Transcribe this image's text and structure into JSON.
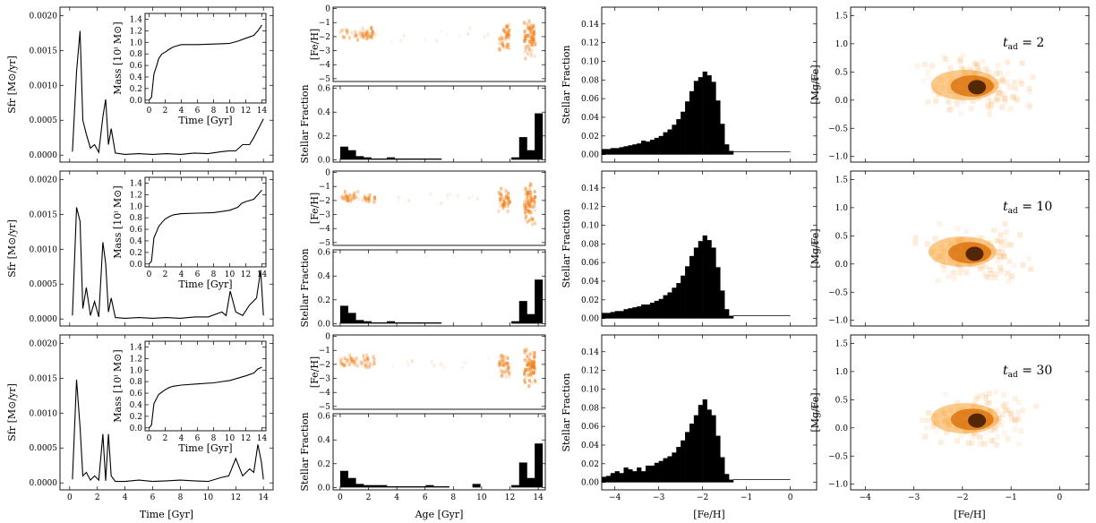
{
  "chart_data": {
    "type": "multi-panel",
    "rows": [
      {
        "t_ad": "2",
        "sfr": {
          "x": [
            0.2,
            0.5,
            0.75,
            0.95,
            1.2,
            1.5,
            1.8,
            2.1,
            2.4,
            2.6,
            2.8,
            3.0,
            3.3,
            4,
            5,
            6,
            7,
            8,
            9,
            10,
            11,
            11.5,
            12,
            12.5,
            13,
            13.3,
            13.7,
            14
          ],
          "y": [
            5e-05,
            0.0012,
            0.00178,
            0.0005,
            0.0003,
            0.0001,
            0.00015,
            4e-05,
            0.00055,
            0.0008,
            0.00015,
            0.00038,
            3e-05,
            1e-05,
            2e-05,
            1e-05,
            2e-05,
            1e-05,
            3e-05,
            2e-05,
            5e-05,
            6e-05,
            6e-05,
            0.00015,
            0.00015,
            0.00025,
            0.0004,
            0.00052
          ]
        },
        "mass": {
          "x": [
            0,
            0.3,
            0.6,
            0.9,
            1.2,
            1.6,
            2,
            2.5,
            3,
            4,
            6,
            8,
            10,
            11,
            12,
            13,
            13.5,
            14
          ],
          "y": [
            0,
            0.05,
            0.45,
            0.58,
            0.72,
            0.8,
            0.83,
            0.88,
            0.92,
            0.96,
            0.96,
            0.97,
            0.98,
            1.02,
            1.07,
            1.12,
            1.2,
            1.3
          ]
        },
        "age_hist": [
          0.11,
          0.08,
          0.03,
          0.02,
          0.01,
          0.01,
          0.02,
          0.01,
          0.01,
          0.01,
          0.01,
          0.01,
          0.01,
          0,
          0,
          0,
          0,
          0,
          0,
          0,
          0,
          0,
          0.02,
          0.19,
          0.08,
          0.39
        ],
        "feh_hist": [
          0.006,
          0.006,
          0.007,
          0.007,
          0.008,
          0.009,
          0.01,
          0.011,
          0.012,
          0.015,
          0.014,
          0.016,
          0.018,
          0.02,
          0.024,
          0.027,
          0.032,
          0.038,
          0.046,
          0.057,
          0.068,
          0.079,
          0.083,
          0.089,
          0.085,
          0.078,
          0.058,
          0.033,
          0.011,
          0.004
        ],
        "mgfe_center": [
          -1.7,
          0.25
        ]
      },
      {
        "t_ad": "10",
        "sfr": {
          "x": [
            0.2,
            0.5,
            0.75,
            0.95,
            1.2,
            1.5,
            1.8,
            2.1,
            2.4,
            2.6,
            2.8,
            3.0,
            3.3,
            4,
            5,
            6,
            7,
            8,
            9,
            10,
            11,
            11.3,
            11.6,
            12,
            12.5,
            13,
            13.5,
            13.8,
            14
          ],
          "y": [
            5e-05,
            0.0016,
            0.0014,
            0.00015,
            0.00045,
            5e-05,
            0.00025,
            3e-05,
            0.0011,
            0.0008,
            0.0001,
            0.0003,
            2e-05,
            1e-05,
            2e-05,
            1e-05,
            2e-05,
            1e-05,
            3e-05,
            3e-05,
            0.0001,
            5e-05,
            0.0004,
            0.0001,
            5e-05,
            0.0002,
            0.0003,
            0.0007,
            5e-05
          ]
        },
        "mass": {
          "x": [
            0,
            0.3,
            0.6,
            0.9,
            1.2,
            1.6,
            2,
            2.5,
            3,
            4,
            6,
            8,
            10,
            11,
            11.5,
            12,
            13,
            13.5,
            14
          ],
          "y": [
            0,
            0.05,
            0.45,
            0.55,
            0.65,
            0.72,
            0.78,
            0.82,
            0.85,
            0.87,
            0.88,
            0.89,
            0.93,
            0.98,
            1.05,
            1.08,
            1.12,
            1.2,
            1.28
          ]
        },
        "age_hist": [
          0.15,
          0.09,
          0.03,
          0.02,
          0.01,
          0.01,
          0.02,
          0.01,
          0.01,
          0.01,
          0.01,
          0.01,
          0.01,
          0,
          0,
          0,
          0,
          0,
          0,
          0,
          0,
          0,
          0.02,
          0.19,
          0.08,
          0.37
        ],
        "feh_hist": [
          0.006,
          0.006,
          0.007,
          0.008,
          0.008,
          0.01,
          0.011,
          0.012,
          0.013,
          0.015,
          0.015,
          0.017,
          0.019,
          0.021,
          0.025,
          0.028,
          0.033,
          0.038,
          0.046,
          0.056,
          0.067,
          0.076,
          0.083,
          0.089,
          0.084,
          0.076,
          0.055,
          0.03,
          0.01,
          0.003
        ],
        "mgfe_center": [
          -1.75,
          0.2
        ]
      },
      {
        "t_ad": "30",
        "sfr": {
          "x": [
            0.2,
            0.5,
            0.75,
            0.95,
            1.2,
            1.5,
            1.8,
            2.1,
            2.4,
            2.6,
            2.8,
            3.0,
            3.3,
            4,
            5,
            6,
            7,
            8,
            9,
            10,
            11,
            11.5,
            12,
            12.5,
            13,
            13.3,
            13.6,
            13.85,
            14
          ],
          "y": [
            5e-05,
            0.00148,
            0.0008,
            0.0001,
            0.00015,
            4e-05,
            0.0001,
            4e-05,
            0.0007,
            3e-05,
            0.0007,
            0.0001,
            2e-05,
            2e-05,
            4e-05,
            2e-05,
            3e-05,
            4e-05,
            3e-05,
            2e-05,
            8e-05,
            0.0001,
            0.00035,
            0.0001,
            0.0002,
            0.00015,
            0.00055,
            0.0003,
            5e-05
          ]
        },
        "mass": {
          "x": [
            0,
            0.3,
            0.6,
            0.9,
            1.2,
            1.6,
            2,
            2.5,
            3,
            4,
            6,
            8,
            10,
            11,
            12,
            13,
            13.5,
            14
          ],
          "y": [
            0,
            0.05,
            0.42,
            0.5,
            0.58,
            0.62,
            0.66,
            0.7,
            0.72,
            0.74,
            0.76,
            0.78,
            0.82,
            0.86,
            0.9,
            0.95,
            1.02,
            1.05
          ]
        },
        "age_hist": [
          0.14,
          0.08,
          0.03,
          0.02,
          0.02,
          0.02,
          0.01,
          0.01,
          0.01,
          0.01,
          0.01,
          0.02,
          0.01,
          0.01,
          0,
          0,
          0,
          0.03,
          0,
          0,
          0,
          0,
          0.02,
          0.21,
          0.08,
          0.37
        ],
        "feh_hist": [
          0.006,
          0.007,
          0.01,
          0.012,
          0.01,
          0.016,
          0.014,
          0.012,
          0.016,
          0.012,
          0.018,
          0.018,
          0.021,
          0.023,
          0.026,
          0.028,
          0.032,
          0.038,
          0.045,
          0.054,
          0.063,
          0.072,
          0.083,
          0.089,
          0.078,
          0.072,
          0.05,
          0.027,
          0.009,
          0.003
        ],
        "mgfe_center": [
          -1.7,
          0.15
        ]
      }
    ],
    "labels": {
      "sfr_ylabel": "Sfr [M⊙/yr]",
      "time_xlabel": "Time [Gyr]",
      "mass_ylabel": "Mass [10ⁱ M⊙]",
      "feh_ylabel": "[Fe/H]",
      "stellar_fraction": "Stellar Fraction",
      "age_xlabel": "Age [Gyr]",
      "feh_xlabel": "[Fe/H]",
      "mgfe_ylabel": "[Mg/Fe]",
      "tad_prefix": "t",
      "tad_sub": "ad",
      "tad_eq": " = "
    },
    "axes": {
      "sfr": {
        "xlim": [
          -0.7,
          14.7
        ],
        "ylim": [
          -0.0001,
          0.00212
        ],
        "xticks": [
          0,
          2,
          4,
          6,
          8,
          10,
          12,
          14
        ],
        "yticks": [
          0.0,
          0.0005,
          0.001,
          0.0015,
          0.002
        ],
        "ytick_labels": [
          "0.0000",
          "0.0005",
          "0.0010",
          "0.0015",
          "0.0020"
        ]
      },
      "mass": {
        "xlim": [
          -0.5,
          14.5
        ],
        "ylim": [
          -0.05,
          1.5
        ],
        "xticks": [
          0,
          2,
          4,
          6,
          8,
          10,
          12,
          14
        ],
        "yticks": [
          0,
          0.2,
          0.4,
          0.6,
          0.8,
          1.0,
          1.2,
          1.4
        ],
        "ytick_labels": [
          "0.0",
          "0.2",
          "0.4",
          "0.6",
          "0.8",
          "1.0",
          "1.2",
          "1.4"
        ]
      },
      "feh_age": {
        "xlim": [
          -0.5,
          14.5
        ],
        "ylim": [
          -5.2,
          0.1
        ],
        "yticks": [
          0,
          -1,
          -2,
          -3,
          -4,
          -5
        ],
        "ytick_labels": [
          "0",
          "−1",
          "−2",
          "−3",
          "−4",
          "−5"
        ]
      },
      "age_hist": {
        "xlim": [
          -0.5,
          14.5
        ],
        "ylim": [
          -0.02,
          0.62
        ],
        "xticks": [
          0,
          2,
          4,
          6,
          8,
          10,
          12,
          14
        ],
        "yticks": [
          0.0,
          0.2,
          0.4,
          0.6
        ],
        "ytick_labels": [
          "0.0",
          "0.2",
          "0.4",
          "0.6"
        ],
        "bin_width": 0.55
      },
      "feh_hist": {
        "xlim": [
          -4.3,
          0.6
        ],
        "ylim": [
          -0.008,
          0.158
        ],
        "xticks": [
          -4,
          -3,
          -2,
          -1,
          0
        ],
        "xtick_labels": [
          "−4",
          "−3",
          "−2",
          "−1",
          "0"
        ],
        "yticks": [
          0,
          0.02,
          0.04,
          0.06,
          0.08,
          0.1,
          0.12,
          0.14
        ],
        "ytick_labels": [
          "0.00",
          "0.02",
          "0.04",
          "0.06",
          "0.08",
          "0.10",
          "0.12",
          "0.14"
        ],
        "bin_start": -4.3,
        "bin_width": 0.1
      },
      "mgfe": {
        "xlim": [
          -4.3,
          0.6
        ],
        "ylim": [
          -1.1,
          1.65
        ],
        "xticks": [
          -4,
          -3,
          -2,
          -1,
          0
        ],
        "xtick_labels": [
          "−4",
          "−3",
          "−2",
          "−1",
          "0"
        ],
        "yticks": [
          -1,
          -0.5,
          0,
          0.5,
          1,
          1.5
        ],
        "ytick_labels": [
          "−1.0",
          "−0.5",
          "0.0",
          "0.5",
          "1.0",
          "1.5"
        ]
      }
    }
  }
}
